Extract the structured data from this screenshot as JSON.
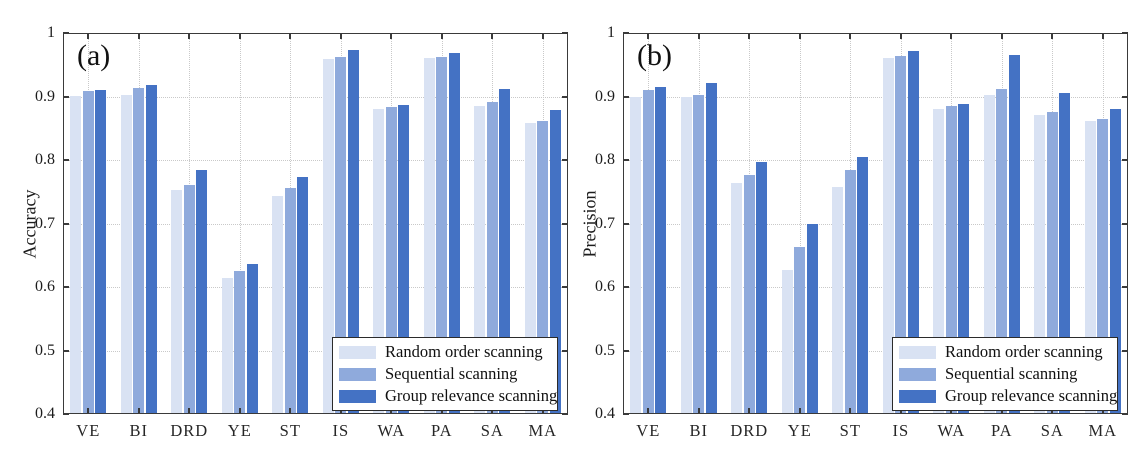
{
  "figure": {
    "background": "#ffffff",
    "frame_color": "#3a3a3a",
    "grid_color": "#c9c9c9",
    "text_color": "#1c1c1c"
  },
  "legend": {
    "items": [
      {
        "label": "Random order scanning",
        "color": "#D9E2F3"
      },
      {
        "label": "Sequential scanning",
        "color": "#8FAADC"
      },
      {
        "label": "Group relevance scanning",
        "color": "#4472C4"
      }
    ]
  },
  "chart_data": [
    {
      "type": "bar",
      "panel_label": "(a)",
      "ylabel": "Accuracy",
      "ylim": [
        0.4,
        1.0
      ],
      "yticks": [
        0.4,
        0.5,
        0.6,
        0.7,
        0.8,
        0.9,
        1
      ],
      "ytick_labels": [
        "0.4",
        "0.5",
        "0.6",
        "0.7",
        "0.8",
        "0.9",
        "1"
      ],
      "grid": true,
      "legend_position": "bottom-right",
      "categories": [
        "VE",
        "BI",
        "DRD",
        "YE",
        "ST",
        "IS",
        "WA",
        "PA",
        "SA",
        "MA"
      ],
      "series": [
        {
          "name": "Random order scanning",
          "color": "#D9E2F3",
          "values": [
            0.901,
            0.903,
            0.753,
            0.614,
            0.743,
            0.959,
            0.881,
            0.96,
            0.885,
            0.859
          ]
        },
        {
          "name": "Sequential scanning",
          "color": "#8FAADC",
          "values": [
            0.908,
            0.914,
            0.761,
            0.626,
            0.756,
            0.963,
            0.883,
            0.962,
            0.891,
            0.861
          ]
        },
        {
          "name": "Group relevance scanning",
          "color": "#4472C4",
          "values": [
            0.911,
            0.918,
            0.784,
            0.636,
            0.774,
            0.973,
            0.886,
            0.969,
            0.912,
            0.879
          ]
        }
      ]
    },
    {
      "type": "bar",
      "panel_label": "(b)",
      "ylabel": "Precision",
      "ylim": [
        0.4,
        1.0
      ],
      "yticks": [
        0.4,
        0.5,
        0.6,
        0.7,
        0.8,
        0.9,
        1
      ],
      "ytick_labels": [
        "0.4",
        "0.5",
        "0.6",
        "0.7",
        "0.8",
        "0.9",
        "1"
      ],
      "grid": true,
      "legend_position": "bottom-right",
      "categories": [
        "VE",
        "BI",
        "DRD",
        "YE",
        "ST",
        "IS",
        "WA",
        "PA",
        "SA",
        "MA"
      ],
      "series": [
        {
          "name": "Random order scanning",
          "color": "#D9E2F3",
          "values": [
            0.9,
            0.9,
            0.764,
            0.627,
            0.758,
            0.96,
            0.881,
            0.902,
            0.871,
            0.861
          ]
        },
        {
          "name": "Sequential scanning",
          "color": "#8FAADC",
          "values": [
            0.91,
            0.903,
            0.777,
            0.663,
            0.784,
            0.964,
            0.885,
            0.912,
            0.876,
            0.865
          ]
        },
        {
          "name": "Group relevance scanning",
          "color": "#4472C4",
          "values": [
            0.915,
            0.921,
            0.797,
            0.7,
            0.805,
            0.972,
            0.889,
            0.966,
            0.905,
            0.881
          ]
        }
      ]
    }
  ]
}
